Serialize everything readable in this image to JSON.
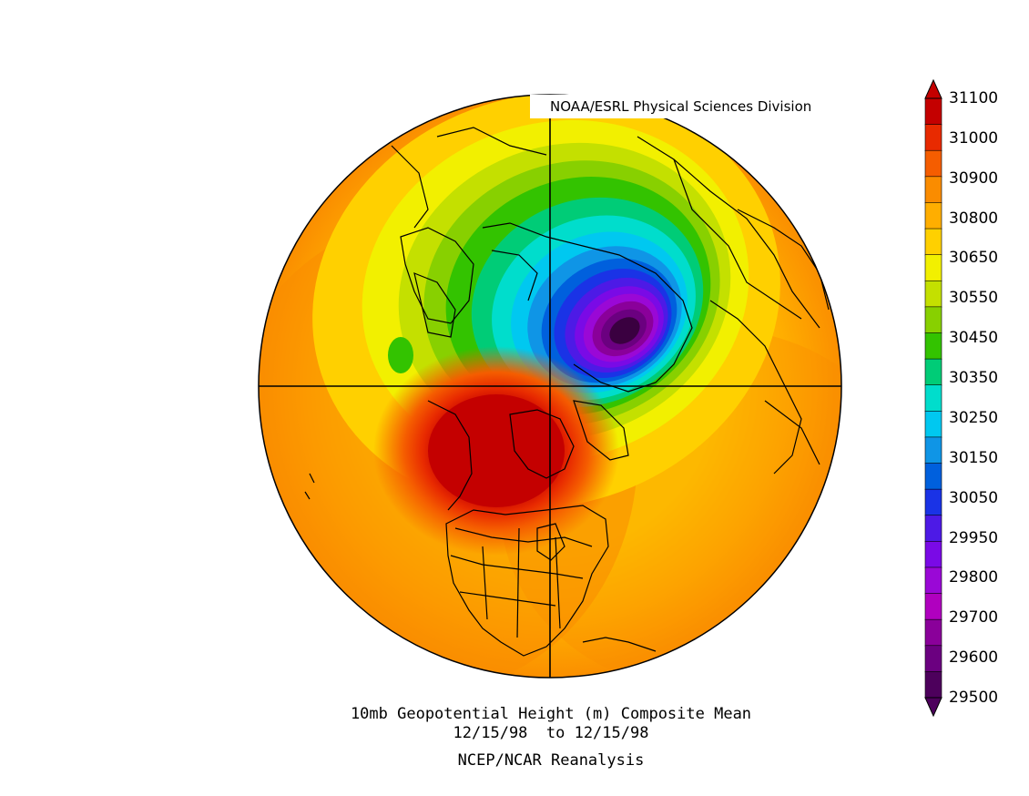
{
  "credit": "NOAA/ESRL Physical Sciences Division",
  "caption": {
    "line1": "10mb Geopotential Height (m) Composite Mean",
    "line2": "12/15/98  to 12/15/98",
    "line3": "NCEP/NCAR Reanalysis"
  },
  "colorbar": {
    "labels": [
      "31100",
      "31000",
      "30900",
      "30800",
      "30650",
      "30550",
      "30450",
      "30350",
      "30250",
      "30150",
      "30050",
      "29950",
      "29800",
      "29700",
      "29600",
      "29500"
    ],
    "colors": [
      "#c40000",
      "#e82a00",
      "#f55d00",
      "#fa8c00",
      "#ffae00",
      "#ffd000",
      "#f2f000",
      "#c4e000",
      "#88d000",
      "#33c300",
      "#00cc77",
      "#00ddcc",
      "#00c8f0",
      "#0f95e6",
      "#0060dd",
      "#1a33e6",
      "#4d1ae6",
      "#7a0ae6",
      "#9a08d6",
      "#b000bf",
      "#8a009a",
      "#6b0080",
      "#4d005c"
    ]
  },
  "map": {
    "projection": "north polar stereographic",
    "field_colors": {
      "high": "#c40000",
      "low": "#3a0040",
      "background": "#fa8c00"
    }
  }
}
